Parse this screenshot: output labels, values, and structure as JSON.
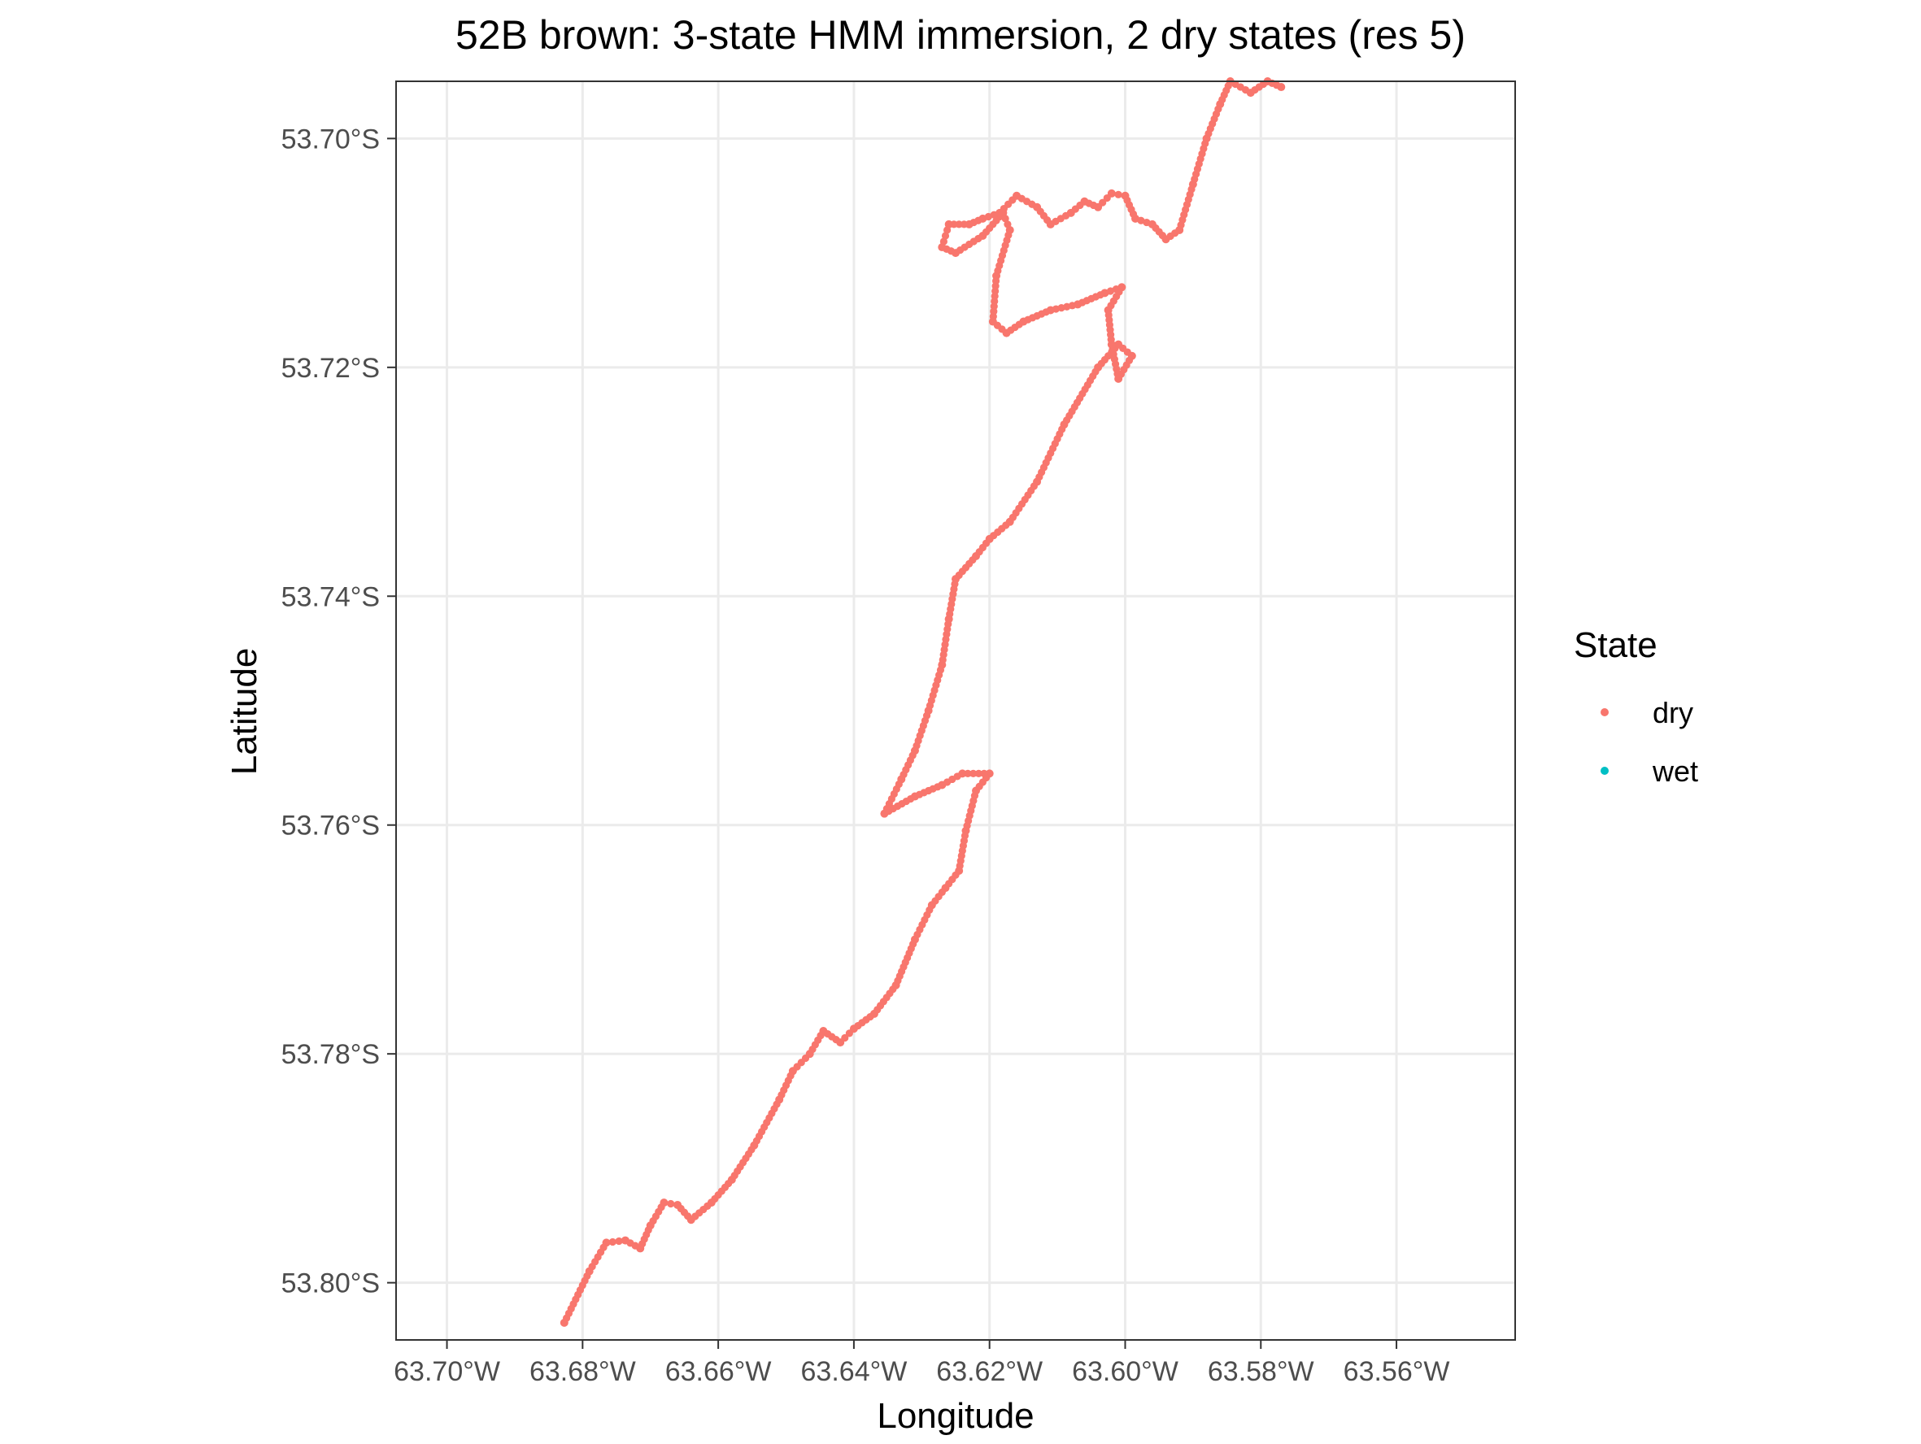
{
  "chart_data": {
    "type": "scatter",
    "title": "52B brown: 3-state HMM immersion, 2 dry states (res 5)",
    "xlabel": "Longitude",
    "ylabel": "Latitude",
    "xlim": [
      -63.7075,
      -63.5425
    ],
    "ylim": [
      -53.805,
      -53.695
    ],
    "x_ticks": [
      -63.7,
      -63.68,
      -63.66,
      -63.64,
      -63.62,
      -63.6,
      -63.58,
      -63.56
    ],
    "x_tick_labels": [
      "63.70°W",
      "63.68°W",
      "63.66°W",
      "63.64°W",
      "63.62°W",
      "63.60°W",
      "63.58°W",
      "63.56°W"
    ],
    "y_ticks": [
      -53.7,
      -53.72,
      -53.74,
      -53.76,
      -53.78,
      -53.8
    ],
    "y_tick_labels": [
      "53.70°S",
      "53.72°S",
      "53.74°S",
      "53.76°S",
      "53.78°S",
      "53.80°S"
    ],
    "grid": true,
    "legend": {
      "title": "State",
      "position": "right",
      "entries": [
        {
          "label": "dry",
          "color": "#F8766D"
        },
        {
          "label": "wet",
          "color": "#00BFC4"
        }
      ]
    },
    "series": [
      {
        "name": "dry",
        "color": "#F8766D",
        "points": [
          [
            -63.6827,
            -53.8035
          ],
          [
            -63.679,
            -53.799
          ],
          [
            -63.6765,
            -53.7965
          ],
          [
            -63.6737,
            -53.7963
          ],
          [
            -63.6715,
            -53.797
          ],
          [
            -63.67,
            -53.795
          ],
          [
            -63.668,
            -53.793
          ],
          [
            -63.666,
            -53.7932
          ],
          [
            -63.664,
            -53.7945
          ],
          [
            -63.661,
            -53.793
          ],
          [
            -63.658,
            -53.791
          ],
          [
            -63.6547,
            -53.788
          ],
          [
            -63.651,
            -53.784
          ],
          [
            -63.649,
            -53.7815
          ],
          [
            -63.6465,
            -53.78
          ],
          [
            -63.6445,
            -53.778
          ],
          [
            -63.642,
            -53.779
          ],
          [
            -63.64,
            -53.7778
          ],
          [
            -63.637,
            -53.7765
          ],
          [
            -63.6338,
            -53.774
          ],
          [
            -63.631,
            -53.77
          ],
          [
            -63.6285,
            -53.767
          ],
          [
            -63.6265,
            -53.7655
          ],
          [
            -63.6245,
            -53.764
          ],
          [
            -63.6235,
            -53.7605
          ],
          [
            -63.622,
            -53.757
          ],
          [
            -63.62,
            -53.7555
          ],
          [
            -63.624,
            -53.7555
          ],
          [
            -63.627,
            -53.7565
          ],
          [
            -63.631,
            -53.7575
          ],
          [
            -63.6355,
            -53.759
          ],
          [
            -63.633,
            -53.756
          ],
          [
            -63.631,
            -53.7535
          ],
          [
            -63.629,
            -53.75
          ],
          [
            -63.627,
            -53.746
          ],
          [
            -63.626,
            -53.742
          ],
          [
            -63.625,
            -53.7385
          ],
          [
            -63.622,
            -53.7365
          ],
          [
            -63.62,
            -53.735
          ],
          [
            -63.617,
            -53.7335
          ],
          [
            -63.613,
            -53.73
          ],
          [
            -63.609,
            -53.725
          ],
          [
            -63.604,
            -53.72
          ],
          [
            -63.601,
            -53.718
          ],
          [
            -63.599,
            -53.719
          ],
          [
            -63.601,
            -53.721
          ],
          [
            -63.602,
            -53.718
          ],
          [
            -63.6025,
            -53.715
          ],
          [
            -63.6005,
            -53.713
          ],
          [
            -63.603,
            -53.7135
          ],
          [
            -63.607,
            -53.7145
          ],
          [
            -63.611,
            -53.715
          ],
          [
            -63.615,
            -53.716
          ],
          [
            -63.6175,
            -53.717
          ],
          [
            -63.6195,
            -53.716
          ],
          [
            -63.619,
            -53.712
          ],
          [
            -63.617,
            -53.708
          ],
          [
            -63.618,
            -53.7065
          ],
          [
            -63.621,
            -53.7085
          ],
          [
            -63.625,
            -53.71
          ],
          [
            -63.627,
            -53.7095
          ],
          [
            -63.626,
            -53.7075
          ],
          [
            -63.623,
            -53.7075
          ],
          [
            -63.621,
            -53.707
          ],
          [
            -63.6185,
            -53.7065
          ],
          [
            -63.616,
            -53.705
          ],
          [
            -63.613,
            -53.706
          ],
          [
            -63.611,
            -53.7075
          ],
          [
            -63.608,
            -53.7065
          ],
          [
            -63.606,
            -53.7055
          ],
          [
            -63.604,
            -53.706
          ],
          [
            -63.602,
            -53.7048
          ],
          [
            -63.6,
            -53.705
          ],
          [
            -63.5985,
            -53.707
          ],
          [
            -63.596,
            -53.7075
          ],
          [
            -63.594,
            -53.7088
          ],
          [
            -63.592,
            -53.708
          ],
          [
            -63.59,
            -53.704
          ],
          [
            -63.588,
            -53.7
          ],
          [
            -63.586,
            -53.697
          ],
          [
            -63.5845,
            -53.695
          ],
          [
            -63.5815,
            -53.696
          ],
          [
            -63.579,
            -53.695
          ],
          [
            -63.577,
            -53.6955
          ]
        ]
      },
      {
        "name": "wet",
        "color": "#00BFC4",
        "points": []
      }
    ]
  }
}
